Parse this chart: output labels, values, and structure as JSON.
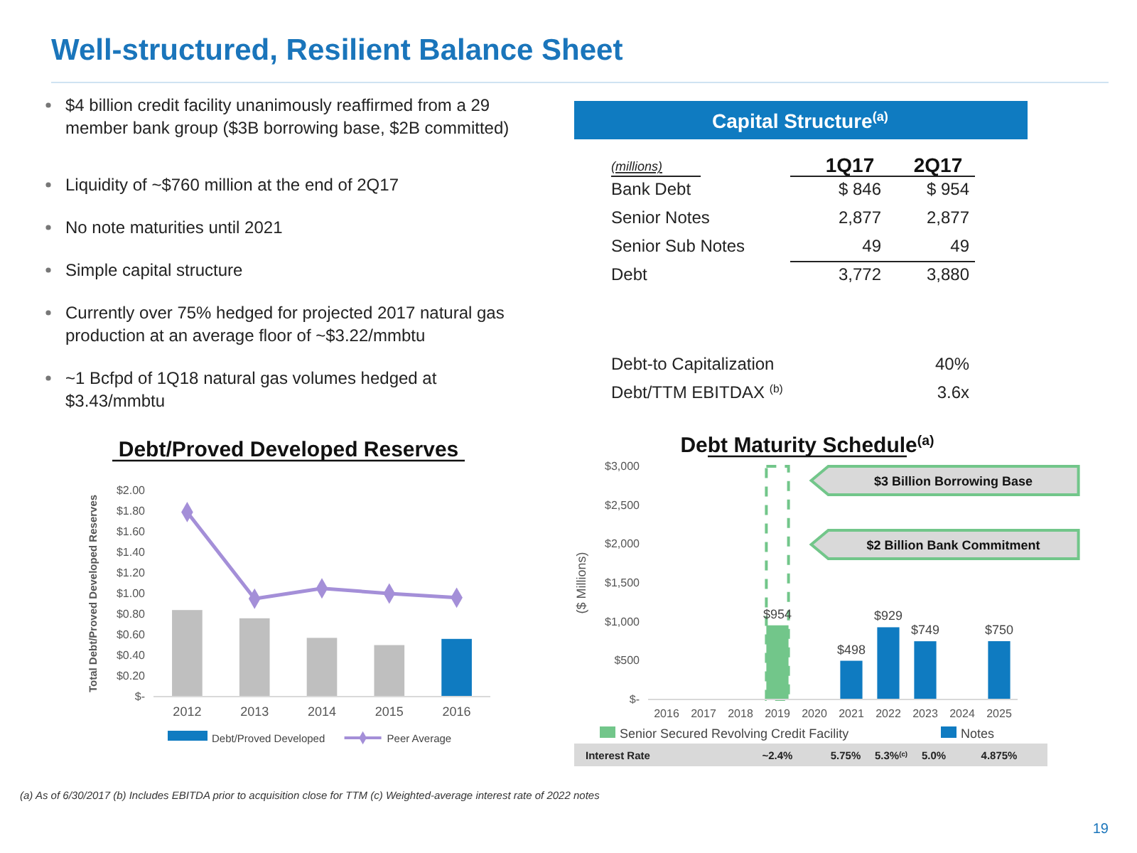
{
  "chart_data": [
    {
      "type": "other",
      "title": "Well-structured, Resilient Balance Sheet",
      "annotations": [
        "$4 billion credit facility unanimously reaffirmed from a 29 member bank group ($3B borrowing base, $2B committed)",
        "Liquidity of ~$760 million at the end of 2Q17",
        "No note maturities until 2021",
        "Simple capital structure",
        "Currently over 75% hedged for projected 2017 natural gas production at an average floor of ~$3.22/mmbtu",
        "~1 Bcfpd of 1Q18 natural gas volumes hedged at $3.43/mmbtu",
        "(a)  As of 6/30/2017 (b) Includes EBITDA prior to acquisition close for TTM  (c) Weighted-average interest rate of 2022 notes",
        "19"
      ]
    },
    {
      "type": "other",
      "title": "Capital Structure$^{(a)}$",
      "subtitle": "(millions)",
      "categories": [
        "1Q17",
        "2Q17"
      ],
      "y_categories": [
        "Bank Debt",
        "Senior Notes",
        "Senior Sub Notes",
        "Debt",
        "Debt-to Capitalization",
        "Debt/TTM EBITDAX $^{(b)}$"
      ],
      "cell_labels": [
        [
          "$ 846",
          "$ 954"
        ],
        [
          "2,877",
          "2,877"
        ],
        [
          "49",
          "49"
        ],
        [
          "3,772",
          "3,880"
        ],
        [
          null,
          "40%"
        ],
        [
          null,
          "3.6x"
        ]
      ]
    },
    {
      "type": "bar",
      "title": "Debt/Proved Developed Reserves",
      "ylabel": "Total Debt/Proved Developed Reserves",
      "categories": [
        "2012",
        "2013",
        "2014",
        "2015",
        "2016"
      ],
      "series": [
        {
          "name": "Debt/Proved Developed",
          "type": "bar",
          "color": "#0f7bc1",
          "colors": [
            "#bfbfbf",
            "#bfbfbf",
            "#bfbfbf",
            "#bfbfbf",
            "#0f7bc1"
          ],
          "values": [
            0.84,
            0.76,
            0.57,
            0.5,
            0.56
          ]
        },
        {
          "name": "Peer Average",
          "type": "line",
          "color": "#a48fd8",
          "marker": "diamond",
          "values": [
            1.79,
            0.95,
            1.05,
            1.0,
            0.96
          ]
        }
      ],
      "ylim": [
        0,
        2
      ],
      "yticks": [
        {
          "value": 0,
          "label": "$-"
        },
        {
          "value": 0.2,
          "label": "$0.20"
        },
        {
          "value": 0.4,
          "label": "$0.40"
        },
        {
          "value": 0.6,
          "label": "$0.60"
        },
        {
          "value": 0.8,
          "label": "$0.80"
        },
        {
          "value": 1,
          "label": "$1.00"
        },
        {
          "value": 1.2,
          "label": "$1.20"
        },
        {
          "value": 1.4,
          "label": "$1.40"
        },
        {
          "value": 1.6,
          "label": "$1.60"
        },
        {
          "value": 1.8,
          "label": "$1.80"
        },
        {
          "value": 2,
          "label": "$2.00"
        }
      ],
      "legend": "bottom"
    },
    {
      "type": "bar",
      "title": "Debt Maturity Schedule$^{(a)}$",
      "ylabel": "($ Millions)",
      "categories": [
        "2016",
        "2017",
        "2018",
        "2019",
        "2020",
        "2021",
        "2022",
        "2023",
        "2024",
        "2025"
      ],
      "series": [
        {
          "name": "Senior Secured Revolving Credit Facility",
          "color": "#72c68a",
          "values": [
            null,
            null,
            null,
            954,
            null,
            null,
            null,
            null,
            null,
            null
          ],
          "value_labels": [
            null,
            null,
            null,
            "$954",
            null,
            null,
            null,
            null,
            null,
            null
          ]
        },
        {
          "name": "Notes",
          "color": "#0f7bc1",
          "values": [
            null,
            null,
            null,
            null,
            null,
            498,
            929,
            749,
            null,
            750
          ],
          "value_labels": [
            null,
            null,
            null,
            null,
            null,
            "$498",
            "$929",
            "$749",
            null,
            "$750"
          ]
        },
        {
          "type": "bar",
          "color": "#72c68a",
          "line_style": "dashed",
          "values": [
            null,
            null,
            null,
            3000,
            null,
            null,
            null,
            null,
            null,
            null
          ]
        }
      ],
      "ylim": [
        0,
        3000
      ],
      "yticks": [
        {
          "value": 0,
          "label": "$-"
        },
        {
          "value": 500,
          "label": "$500"
        },
        {
          "value": 1000,
          "label": "$1,000"
        },
        {
          "value": 1500,
          "label": "$1,500"
        },
        {
          "value": 2000,
          "label": "$2,000"
        },
        {
          "value": 2500,
          "label": "$2,500"
        },
        {
          "value": 3000,
          "label": "$3,000"
        }
      ],
      "legend": "bottom",
      "annotations": [
        "$3 Billion Borrowing Base",
        "$2 Billion Bank Commitment",
        "Interest Rate",
        "~2.4%",
        "5.75%",
        "5.3%$^{(c)}$",
        "5.0%",
        "4.875%"
      ]
    }
  ]
}
